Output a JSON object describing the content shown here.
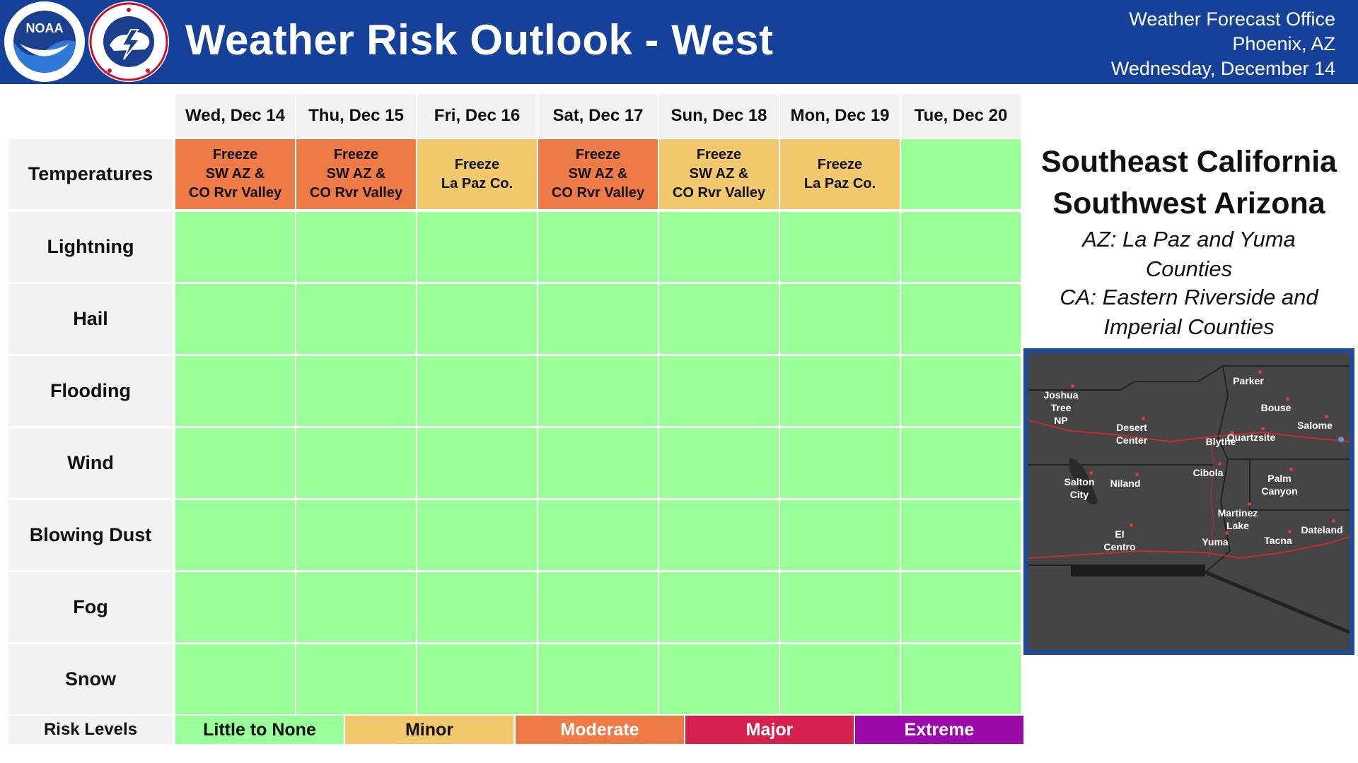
{
  "header": {
    "title": "Weather Risk Outlook - West",
    "office_line1": "Weather Forecast Office",
    "office_line2": "Phoenix, AZ",
    "date": "Wednesday, December 14"
  },
  "days": [
    "Wed, Dec 14",
    "Thu, Dec 15",
    "Fri, Dec 16",
    "Sat, Dec 17",
    "Sun, Dec 18",
    "Mon, Dec 19",
    "Tue, Dec 20"
  ],
  "rows": [
    {
      "label": "Temperatures",
      "cells": [
        {
          "text": "Freeze\nSW AZ &\nCO Rvr Valley",
          "level": "Moderate"
        },
        {
          "text": "Freeze\nSW AZ &\nCO Rvr Valley",
          "level": "Moderate"
        },
        {
          "text": "Freeze\nLa Paz Co.",
          "level": "Minor"
        },
        {
          "text": "Freeze\nSW AZ &\nCO Rvr Valley",
          "level": "Moderate"
        },
        {
          "text": "Freeze\nSW AZ &\nCO Rvr Valley",
          "level": "Minor"
        },
        {
          "text": "Freeze\nLa Paz Co.",
          "level": "Minor"
        },
        {
          "text": "",
          "level": "Little to None"
        }
      ]
    },
    {
      "label": "Lightning",
      "cells": [
        "Little to None",
        "Little to None",
        "Little to None",
        "Little to None",
        "Little to None",
        "Little to None",
        "Little to None"
      ]
    },
    {
      "label": "Hail",
      "cells": [
        "Little to None",
        "Little to None",
        "Little to None",
        "Little to None",
        "Little to None",
        "Little to None",
        "Little to None"
      ]
    },
    {
      "label": "Flooding",
      "cells": [
        "Little to None",
        "Little to None",
        "Little to None",
        "Little to None",
        "Little to None",
        "Little to None",
        "Little to None"
      ]
    },
    {
      "label": "Wind",
      "cells": [
        "Little to None",
        "Little to None",
        "Little to None",
        "Little to None",
        "Little to None",
        "Little to None",
        "Little to None"
      ]
    },
    {
      "label": "Blowing Dust",
      "cells": [
        "Little to None",
        "Little to None",
        "Little to None",
        "Little to None",
        "Little to None",
        "Little to None",
        "Little to None"
      ]
    },
    {
      "label": "Fog",
      "cells": [
        "Little to None",
        "Little to None",
        "Little to None",
        "Little to None",
        "Little to None",
        "Little to None",
        "Little to None"
      ]
    },
    {
      "label": "Snow",
      "cells": [
        "Little to None",
        "Little to None",
        "Little to None",
        "Little to None",
        "Little to None",
        "Little to None",
        "Little to None"
      ]
    }
  ],
  "legend": {
    "label": "Risk Levels",
    "levels": [
      {
        "name": "Little to None",
        "color": "#99ff99",
        "text_color": "#111111"
      },
      {
        "name": "Minor",
        "color": "#f1c96c",
        "text_color": "#111111"
      },
      {
        "name": "Moderate",
        "color": "#ee7a45",
        "text_color": "#ffffff"
      },
      {
        "name": "Major",
        "color": "#d6204e",
        "text_color": "#ffffff"
      },
      {
        "name": "Extreme",
        "color": "#9a0aaa",
        "text_color": "#ffffff"
      }
    ]
  },
  "region": {
    "title_line1": "Southeast California",
    "title_line2": "Southwest Arizona",
    "az_line1": "AZ: La Paz and Yuma",
    "az_line2": "Counties",
    "ca_line1": "CA: Eastern Riverside and",
    "ca_line2": "Imperial Counties"
  },
  "map_places": [
    "Parker",
    "Joshua\nTree\nNP",
    "Bouse",
    "Salome",
    "Desert\nCenter",
    "Quartzsite",
    "Blythe",
    "Cibola",
    "Palm\nCanyon",
    "Salton\nCity",
    "Niland",
    "Martinez\nLake",
    "Dateland",
    "El\nCentro",
    "Yuma",
    "Tacna"
  ],
  "logos": {
    "noaa": "noaa-logo",
    "nws": "nws-logo"
  }
}
